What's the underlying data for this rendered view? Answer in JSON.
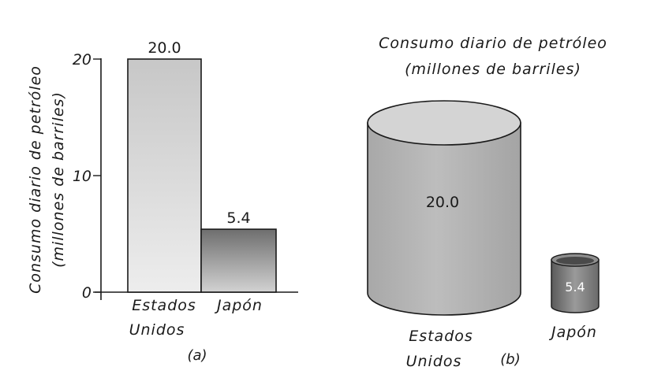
{
  "chart_data": [
    {
      "type": "bar",
      "panel_label": "(a)",
      "ylabel_line1": "Consumo diario de petróleo",
      "ylabel_line2": "(millones de barriles)",
      "ylim": [
        0,
        20
      ],
      "yticks": [
        "0",
        "10",
        "20"
      ],
      "categories": [
        {
          "line1": "Estados",
          "line2": "Unidos"
        },
        {
          "line1": "Japón",
          "line2": ""
        }
      ],
      "values": [
        20.0,
        5.4
      ],
      "value_labels": [
        "20.0",
        "5.4"
      ],
      "grid": false
    },
    {
      "type": "pictograph",
      "panel_label": "(b)",
      "title_line1": "Consumo diario de petróleo",
      "title_line2": "(millones de barriles)",
      "categories": [
        {
          "line1": "Estados",
          "line2": "Unidos"
        },
        {
          "line1": "Japón",
          "line2": ""
        }
      ],
      "values": [
        20.0,
        5.4
      ],
      "value_labels": [
        "20.0",
        "5.4"
      ]
    }
  ],
  "colors": {
    "bar_light_top": "#c7c7c7",
    "bar_light_bottom": "#ededed",
    "bar_dark_top": "#6e6e6e",
    "bar_dark_bottom": "#d2d2d2",
    "cylinder": "#b5b5b5",
    "cylinder_top": "#d4d4d4",
    "ink": "#1a1a1a"
  }
}
